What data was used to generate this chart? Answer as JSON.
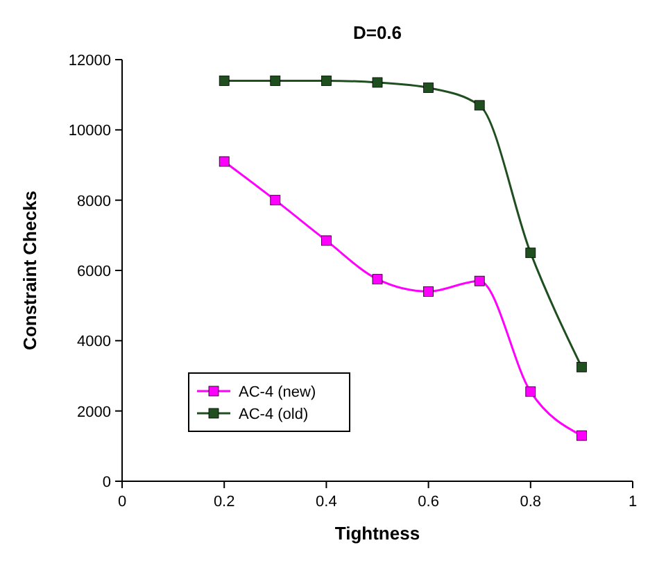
{
  "chart_data": {
    "type": "line",
    "title": "D=0.6",
    "xlabel": "Tightness",
    "ylabel": "Constraint Checks",
    "x": [
      0.2,
      0.3,
      0.4,
      0.5,
      0.6,
      0.7,
      0.8,
      0.9
    ],
    "series": [
      {
        "name": "AC-4 (new)",
        "color": "#ff00ff",
        "values": [
          9100,
          8000,
          6850,
          5750,
          5400,
          5700,
          2550,
          1300
        ]
      },
      {
        "name": "AC-4 (old)",
        "color": "#1f4f1f",
        "values": [
          11400,
          11400,
          11400,
          11350,
          11200,
          10700,
          6500,
          3250
        ]
      }
    ],
    "xlim": [
      0,
      1
    ],
    "xticks": [
      0,
      0.2,
      0.4,
      0.6,
      0.8,
      1
    ],
    "ylim": [
      0,
      12000
    ],
    "yticks": [
      0,
      2000,
      4000,
      6000,
      8000,
      10000,
      12000
    ],
    "marker": "square",
    "legend": "bottom left",
    "line_style": "solid"
  }
}
